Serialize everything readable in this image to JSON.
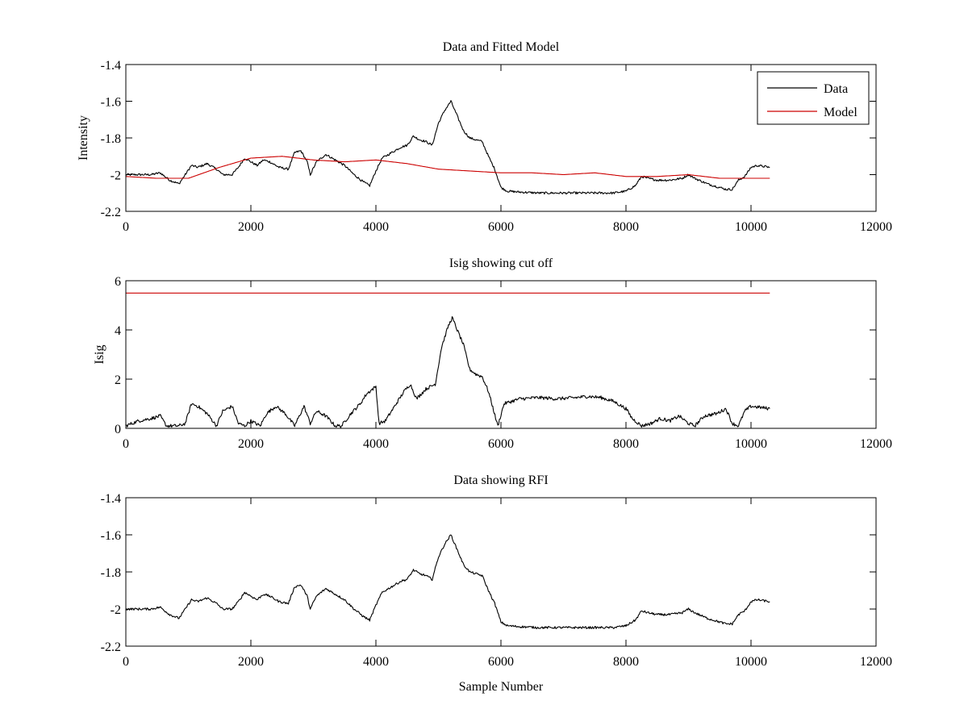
{
  "figure": {
    "background": "#ffffff"
  },
  "colors": {
    "data": "#000000",
    "model": "#cc0000",
    "axes": "#000000"
  },
  "chart_data": [
    {
      "type": "line",
      "title": "Data and Fitted Model",
      "xlabel": "",
      "ylabel": "Intensity",
      "xlim": [
        0,
        12000
      ],
      "ylim": [
        -2.2,
        -1.4
      ],
      "y_reversed": false,
      "xticks": [
        0,
        2000,
        4000,
        6000,
        8000,
        10000,
        12000
      ],
      "yticks": [
        -2.2,
        -2,
        -1.8,
        -1.6,
        -1.4
      ],
      "ytick_labels": [
        "-2.2",
        "-2",
        "-1.8",
        "-1.6",
        "-1.4"
      ],
      "grid": false,
      "legend": {
        "placement": "top-right",
        "entries": [
          "Data",
          "Model"
        ]
      },
      "series": [
        {
          "name": "Data",
          "color": "#000000",
          "noise": 0.006,
          "x": [
            0,
            200,
            400,
            550,
            700,
            850,
            950,
            1050,
            1150,
            1300,
            1450,
            1550,
            1700,
            1800,
            1900,
            2000,
            2100,
            2200,
            2300,
            2450,
            2600,
            2700,
            2800,
            2900,
            2950,
            3050,
            3200,
            3350,
            3500,
            3650,
            3800,
            3900,
            4000,
            4100,
            4200,
            4300,
            4400,
            4500,
            4600,
            4700,
            4800,
            4900,
            5000,
            5100,
            5200,
            5300,
            5400,
            5500,
            5600,
            5700,
            5800,
            5900,
            6000,
            6100,
            6300,
            6600,
            6900,
            7200,
            7500,
            7800,
            8000,
            8150,
            8250,
            8350,
            8500,
            8700,
            8900,
            9000,
            9100,
            9300,
            9500,
            9600,
            9700,
            9800,
            9900,
            10000,
            10100,
            10300
          ],
          "y": [
            -2.0,
            -2.0,
            -2.0,
            -1.99,
            -2.03,
            -2.05,
            -2.0,
            -1.95,
            -1.96,
            -1.94,
            -1.97,
            -2.0,
            -2.0,
            -1.96,
            -1.91,
            -1.93,
            -1.95,
            -1.92,
            -1.93,
            -1.96,
            -1.97,
            -1.88,
            -1.87,
            -1.93,
            -2.0,
            -1.93,
            -1.89,
            -1.92,
            -1.95,
            -2.0,
            -2.04,
            -2.06,
            -1.98,
            -1.91,
            -1.89,
            -1.87,
            -1.85,
            -1.84,
            -1.79,
            -1.81,
            -1.82,
            -1.84,
            -1.72,
            -1.65,
            -1.6,
            -1.68,
            -1.76,
            -1.8,
            -1.81,
            -1.82,
            -1.9,
            -1.97,
            -2.07,
            -2.09,
            -2.095,
            -2.1,
            -2.1,
            -2.1,
            -2.1,
            -2.1,
            -2.09,
            -2.06,
            -2.01,
            -2.02,
            -2.03,
            -2.03,
            -2.02,
            -2.0,
            -2.02,
            -2.05,
            -2.07,
            -2.08,
            -2.08,
            -2.03,
            -2.01,
            -1.96,
            -1.95,
            -1.96
          ]
        },
        {
          "name": "Model",
          "color": "#cc0000",
          "noise": 0,
          "x": [
            0,
            500,
            1000,
            1500,
            2000,
            2500,
            3000,
            3500,
            4000,
            4500,
            5000,
            5500,
            6000,
            6500,
            7000,
            7500,
            8000,
            8500,
            9000,
            9500,
            10000,
            10300
          ],
          "y": [
            -2.01,
            -2.02,
            -2.02,
            -1.96,
            -1.91,
            -1.9,
            -1.92,
            -1.93,
            -1.92,
            -1.94,
            -1.97,
            -1.98,
            -1.99,
            -1.99,
            -2.0,
            -1.99,
            -2.01,
            -2.01,
            -2.0,
            -2.02,
            -2.02,
            -2.02
          ]
        }
      ]
    },
    {
      "type": "line",
      "title": "Isig showing cut off",
      "xlabel": "",
      "ylabel": "Isig",
      "xlim": [
        0,
        12000
      ],
      "ylim": [
        0,
        6
      ],
      "y_reversed": false,
      "xticks": [
        0,
        2000,
        4000,
        6000,
        8000,
        10000,
        12000
      ],
      "yticks": [
        0,
        2,
        4,
        6
      ],
      "ytick_labels": [
        "0",
        "2",
        "4",
        "6"
      ],
      "grid": false,
      "series": [
        {
          "name": "",
          "color": "#000000",
          "noise": 0.07,
          "clip_min": 0,
          "x": [
            0,
            200,
            400,
            550,
            650,
            850,
            950,
            1050,
            1150,
            1300,
            1450,
            1550,
            1700,
            1800,
            1900,
            2000,
            2150,
            2250,
            2400,
            2550,
            2700,
            2850,
            2950,
            3050,
            3200,
            3350,
            3450,
            3600,
            3750,
            3850,
            4000,
            4050,
            4150,
            4300,
            4450,
            4550,
            4650,
            4800,
            4950,
            5050,
            5150,
            5220,
            5300,
            5400,
            5500,
            5600,
            5700,
            5800,
            5950,
            6050,
            6300,
            6600,
            6900,
            7200,
            7400,
            7600,
            7800,
            8000,
            8100,
            8250,
            8400,
            8550,
            8700,
            8850,
            9000,
            9100,
            9250,
            9450,
            9600,
            9700,
            9800,
            9900,
            10000,
            10300
          ],
          "y": [
            0.1,
            0.3,
            0.4,
            0.5,
            0.1,
            0.1,
            0.2,
            1.0,
            0.9,
            0.6,
            0.1,
            0.7,
            0.9,
            0.2,
            0.1,
            0.3,
            0.1,
            0.6,
            0.9,
            0.6,
            0.1,
            0.9,
            0.2,
            0.7,
            0.5,
            0.1,
            0.1,
            0.6,
            1.0,
            1.4,
            1.7,
            0.2,
            0.3,
            0.9,
            1.5,
            1.8,
            1.2,
            1.6,
            1.8,
            3.3,
            4.1,
            4.5,
            4.0,
            3.4,
            2.4,
            2.2,
            2.1,
            1.5,
            0.1,
            1.0,
            1.2,
            1.25,
            1.2,
            1.25,
            1.3,
            1.25,
            1.1,
            0.8,
            0.4,
            0.1,
            0.2,
            0.4,
            0.3,
            0.5,
            0.2,
            0.1,
            0.5,
            0.6,
            0.8,
            0.2,
            0.1,
            0.7,
            0.9,
            0.8
          ]
        },
        {
          "name": "",
          "color": "#cc0000",
          "noise": 0,
          "x": [
            0,
            10300
          ],
          "y": [
            5.5,
            5.5
          ]
        }
      ]
    },
    {
      "type": "line",
      "title": "Data showing RFI",
      "xlabel": "Sample Number",
      "ylabel": "",
      "xlim": [
        0,
        12000
      ],
      "ylim": [
        -2.2,
        -1.4
      ],
      "y_reversed": false,
      "xticks": [
        0,
        2000,
        4000,
        6000,
        8000,
        10000,
        12000
      ],
      "yticks": [
        -2.2,
        -2,
        -1.8,
        -1.6,
        -1.4
      ],
      "ytick_labels": [
        "-2.2",
        "-2",
        "-1.8",
        "-1.6",
        "-1.4"
      ],
      "grid": false,
      "series": [
        {
          "name": "",
          "color": "#000000",
          "noise": 0.006,
          "x": [
            0,
            200,
            400,
            550,
            700,
            850,
            950,
            1050,
            1150,
            1300,
            1450,
            1550,
            1700,
            1800,
            1900,
            2000,
            2100,
            2200,
            2300,
            2450,
            2600,
            2700,
            2800,
            2900,
            2950,
            3050,
            3200,
            3350,
            3500,
            3650,
            3800,
            3900,
            4000,
            4100,
            4200,
            4300,
            4400,
            4500,
            4600,
            4700,
            4800,
            4900,
            5000,
            5100,
            5200,
            5300,
            5400,
            5500,
            5600,
            5700,
            5800,
            5900,
            6000,
            6100,
            6300,
            6600,
            6900,
            7200,
            7500,
            7800,
            8000,
            8150,
            8250,
            8350,
            8500,
            8700,
            8900,
            9000,
            9100,
            9300,
            9500,
            9600,
            9700,
            9800,
            9900,
            10000,
            10100,
            10300
          ],
          "y": [
            -2.0,
            -2.0,
            -2.0,
            -1.99,
            -2.03,
            -2.05,
            -2.0,
            -1.95,
            -1.96,
            -1.94,
            -1.97,
            -2.0,
            -2.0,
            -1.96,
            -1.91,
            -1.93,
            -1.95,
            -1.92,
            -1.93,
            -1.96,
            -1.97,
            -1.88,
            -1.87,
            -1.93,
            -2.0,
            -1.93,
            -1.89,
            -1.92,
            -1.95,
            -2.0,
            -2.04,
            -2.06,
            -1.98,
            -1.91,
            -1.89,
            -1.87,
            -1.85,
            -1.84,
            -1.79,
            -1.81,
            -1.82,
            -1.84,
            -1.72,
            -1.65,
            -1.6,
            -1.68,
            -1.76,
            -1.8,
            -1.81,
            -1.82,
            -1.9,
            -1.97,
            -2.07,
            -2.09,
            -2.095,
            -2.1,
            -2.1,
            -2.1,
            -2.1,
            -2.1,
            -2.09,
            -2.06,
            -2.01,
            -2.02,
            -2.03,
            -2.03,
            -2.02,
            -2.0,
            -2.02,
            -2.05,
            -2.07,
            -2.08,
            -2.08,
            -2.03,
            -2.01,
            -1.96,
            -1.95,
            -1.96
          ]
        }
      ]
    }
  ]
}
